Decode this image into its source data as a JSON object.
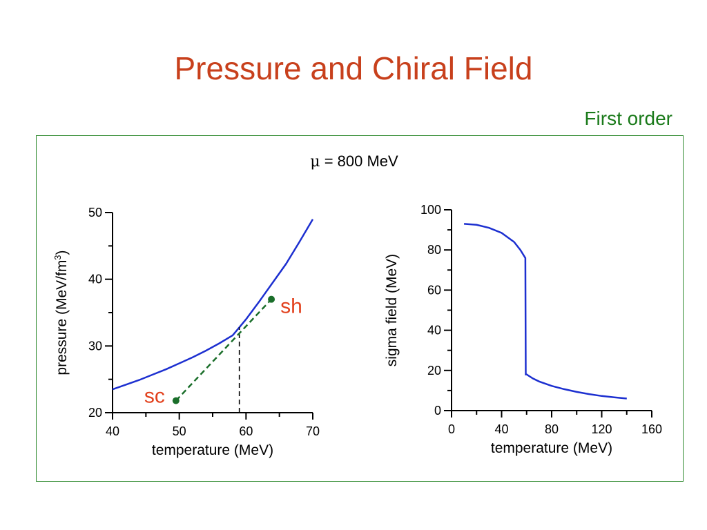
{
  "slide": {
    "title": "Pressure and Chiral Field",
    "subtitle": "First order",
    "condition_label_symbol": "μ",
    "condition_label_rest": " = 800 MeV"
  },
  "colors": {
    "title": "#c8401c",
    "subtitle": "#1a7a1a",
    "frame": "#2f8a2f",
    "curve": "#1c2fd0",
    "green": "#1a6e2a",
    "annotation": "#e2401c"
  },
  "chart_data": [
    {
      "type": "line",
      "xlabel": "temperature (MeV)",
      "ylabel": "pressure (MeV/fm",
      "ylabel_sup": "3",
      "ylabel_close": ")",
      "xlim": [
        40,
        70
      ],
      "ylim": [
        20,
        50
      ],
      "xticks": [
        40,
        50,
        60,
        70
      ],
      "yticks": [
        20,
        30,
        40,
        50
      ],
      "series": [
        {
          "x": [
            40,
            42,
            44,
            46,
            48,
            50,
            52,
            54,
            56,
            58,
            59,
            60,
            62,
            64,
            66,
            68,
            70
          ],
          "y": [
            23.5,
            24.2,
            24.9,
            25.7,
            26.5,
            27.4,
            28.3,
            29.3,
            30.4,
            31.6,
            32.8,
            34.0,
            36.7,
            39.5,
            42.3,
            45.6,
            49.0
          ]
        }
      ],
      "metastable_line": {
        "x": [
          49.5,
          63.8
        ],
        "y": [
          21.8,
          37.0
        ]
      },
      "transition_marker": {
        "x": 59.0,
        "y": [
          20,
          32.8
        ]
      },
      "points": [
        {
          "label": "sc",
          "x": 49.5,
          "y": 21.8
        },
        {
          "label": "sh",
          "x": 63.8,
          "y": 37.0
        }
      ]
    },
    {
      "type": "line",
      "xlabel": "temperature (MeV)",
      "ylabel": "sigma field (MeV)",
      "xlim": [
        0,
        160
      ],
      "ylim": [
        0,
        100
      ],
      "xticks": [
        0,
        40,
        80,
        120,
        160
      ],
      "yticks": [
        0,
        20,
        40,
        60,
        80,
        100
      ],
      "series": [
        {
          "x": [
            10,
            20,
            30,
            40,
            50,
            55,
            59,
            59.3,
            60,
            65,
            70,
            80,
            90,
            100,
            110,
            120,
            130,
            140
          ],
          "y": [
            93,
            92.5,
            91,
            88.5,
            84,
            80,
            76,
            18,
            18,
            16,
            14.5,
            12.3,
            10.7,
            9.3,
            8.2,
            7.3,
            6.6,
            6
          ]
        }
      ]
    }
  ]
}
